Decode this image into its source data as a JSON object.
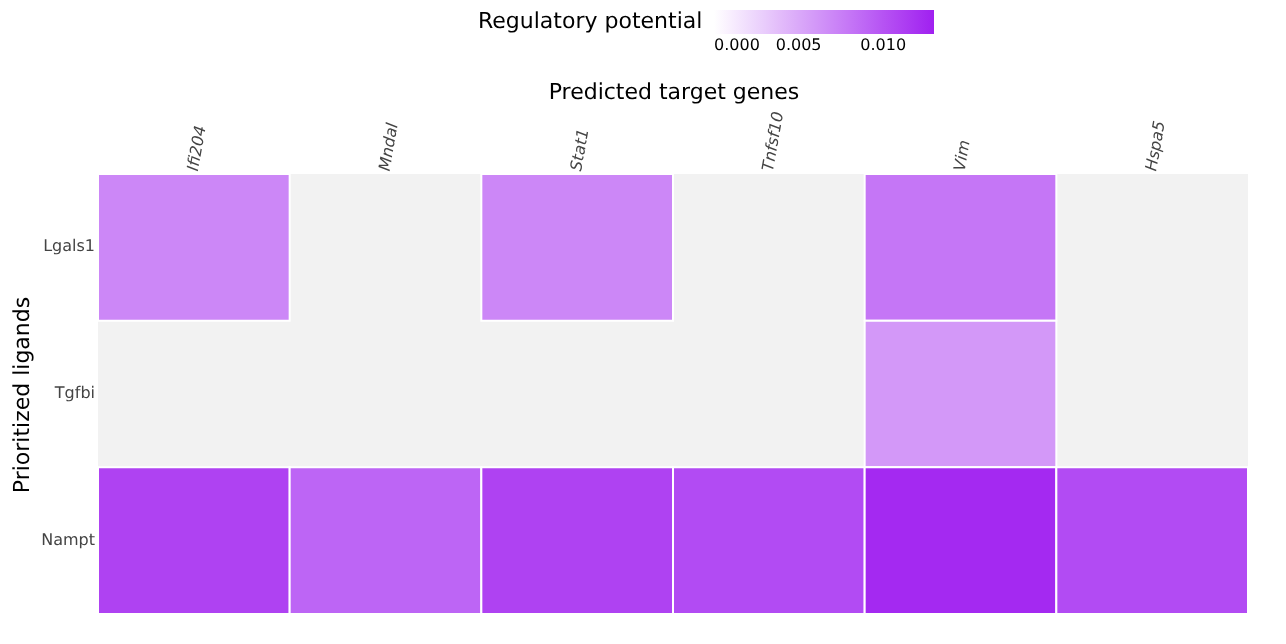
{
  "chart_data": {
    "type": "heatmap",
    "xlabel": "Predicted target genes",
    "ylabel": "Prioritized ligands",
    "clabel": "Regulatory potential",
    "categories": [
      "Ifi204",
      "Mndal",
      "Stat1",
      "Tnfsf10",
      "Vim",
      "Hspa5"
    ],
    "y_categories": [
      "Lgals1",
      "Tgfbi",
      "Nampt"
    ],
    "cells": [
      [
        0.007,
        null,
        0.007,
        null,
        0.008,
        null
      ],
      [
        null,
        null,
        null,
        null,
        0.006,
        null
      ],
      [
        0.011,
        0.009,
        0.011,
        0.0105,
        0.0125,
        0.0105
      ]
    ],
    "clim": [
      0,
      0.013
    ],
    "cticks": [
      {
        "value": 0,
        "label": "0.000"
      },
      {
        "value": 0.005,
        "label": "0.005"
      },
      {
        "value": 0.01,
        "label": "0.010"
      }
    ]
  }
}
